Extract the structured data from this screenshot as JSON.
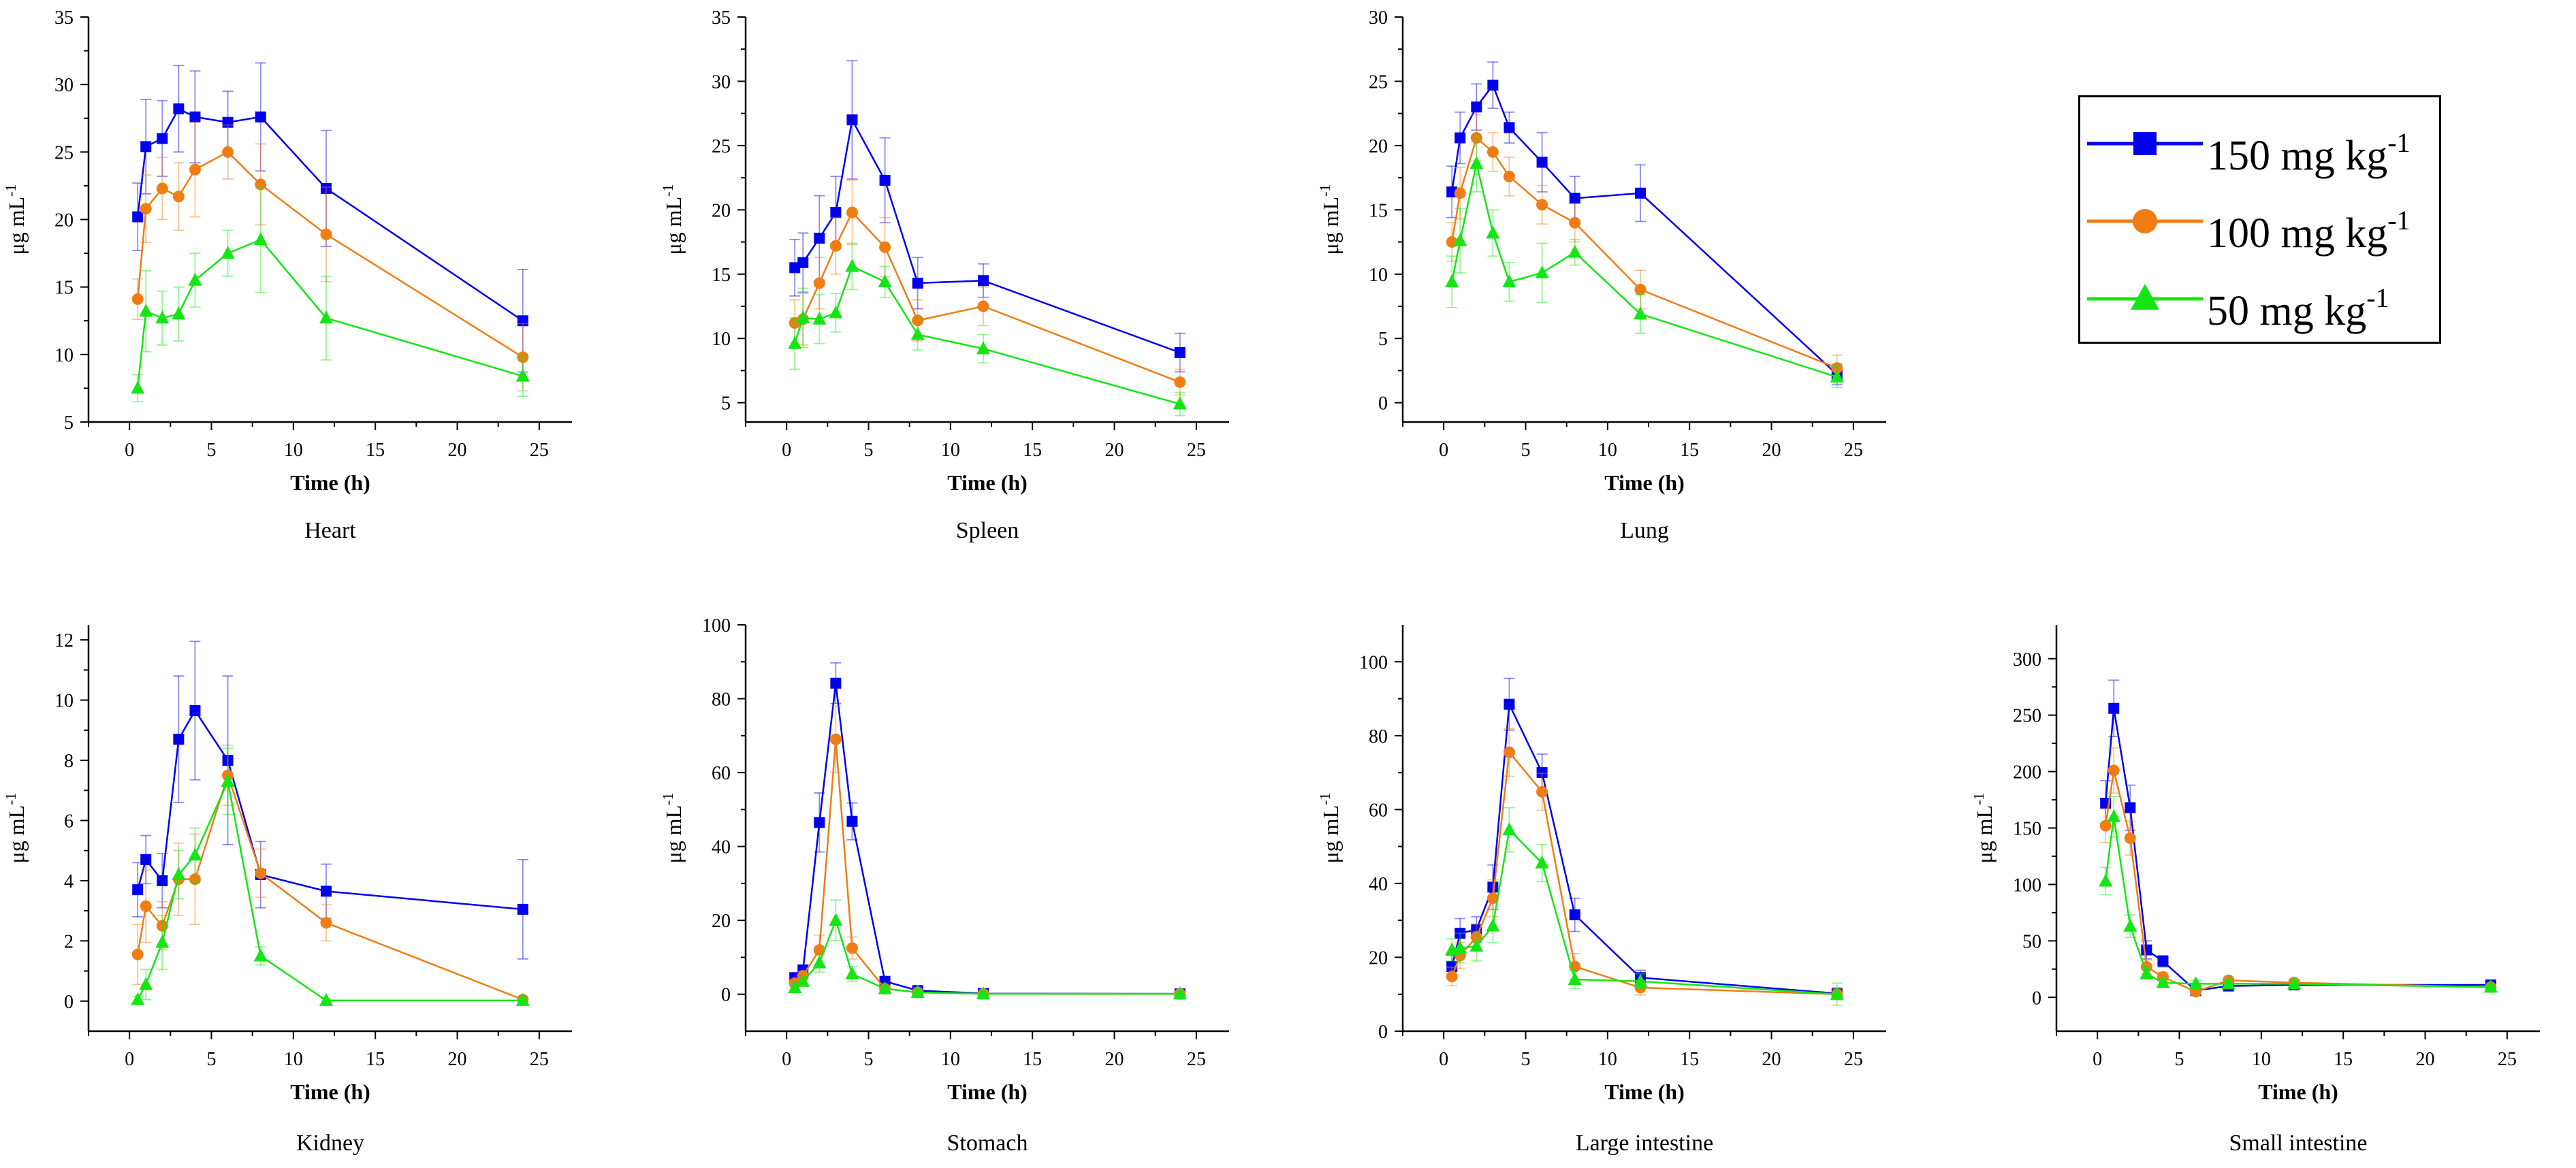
{
  "colors": {
    "s150": "#0000ee",
    "s100": "#f07d14",
    "s50": "#14e614",
    "axis": "#000000"
  },
  "legend": [
    {
      "series": 0,
      "text": "150 mg kg",
      "sup": "-1",
      "color": "#0000ee",
      "marker": "square"
    },
    {
      "series": 1,
      "text": "100 mg kg",
      "sup": "-1",
      "color": "#f07d14",
      "marker": "circle"
    },
    {
      "series": 2,
      "text": " 50 mg kg",
      "sup": "-1",
      "color": "#14e614",
      "marker": "triangle"
    }
  ],
  "chart_data": [
    {
      "type": "line",
      "title": "Heart",
      "xlabel": "Time (h)",
      "ylabel": "μg mL",
      "ylabel_sup": "-1",
      "xlim": [
        -2.5,
        27
      ],
      "ylim": [
        5,
        35
      ],
      "xticks": [
        0,
        5,
        10,
        15,
        20,
        25
      ],
      "yticks": [
        5,
        10,
        15,
        20,
        25,
        30,
        35
      ],
      "x": [
        0.5,
        1,
        2,
        3,
        4,
        6,
        8,
        12,
        24
      ],
      "series": [
        {
          "name": "150 mg kg-1",
          "marker": "square",
          "values": [
            20.2,
            25.4,
            26.0,
            28.2,
            27.6,
            27.2,
            27.6,
            22.3,
            12.5
          ],
          "errors": [
            2.5,
            3.5,
            2.8,
            3.2,
            3.4,
            2.3,
            4.0,
            4.3,
            3.8
          ]
        },
        {
          "name": "100 mg kg-1",
          "marker": "circle",
          "values": [
            14.1,
            20.8,
            22.3,
            21.7,
            23.7,
            25.0,
            22.6,
            18.9,
            9.8
          ],
          "errors": [
            1.5,
            2.5,
            2.3,
            2.5,
            3.5,
            2.0,
            3.0,
            3.5,
            2.5
          ]
        },
        {
          "name": "50 mg kg-1",
          "marker": "triangle",
          "values": [
            7.5,
            13.2,
            12.7,
            13.0,
            15.5,
            17.5,
            18.5,
            12.7,
            8.4
          ],
          "errors": [
            1.0,
            3.0,
            2.0,
            2.0,
            2.0,
            1.7,
            3.9,
            3.1,
            1.5
          ]
        }
      ]
    },
    {
      "type": "line",
      "title": "Spleen",
      "xlabel": "Time (h)",
      "ylabel": "μg mL",
      "ylabel_sup": "-1",
      "xlim": [
        -2.5,
        27
      ],
      "ylim": [
        3.5,
        35
      ],
      "xticks": [
        0,
        5,
        10,
        15,
        20,
        25
      ],
      "yticks": [
        5,
        10,
        15,
        20,
        25,
        30,
        35
      ],
      "x": [
        0.5,
        1,
        2,
        3,
        4,
        6,
        8,
        12,
        24
      ],
      "series": [
        {
          "name": "150 mg kg-1",
          "marker": "square",
          "values": [
            15.5,
            15.9,
            17.8,
            19.8,
            27.0,
            22.3,
            14.3,
            14.5,
            8.9
          ],
          "errors": [
            2.2,
            2.3,
            3.3,
            2.8,
            4.6,
            3.3,
            2.0,
            1.3,
            1.5
          ]
        },
        {
          "name": "100 mg kg-1",
          "marker": "circle",
          "values": [
            11.2,
            11.5,
            14.3,
            17.2,
            19.8,
            17.1,
            11.4,
            12.5,
            6.6
          ],
          "errors": [
            1.8,
            2.0,
            2.0,
            2.2,
            2.5,
            2.3,
            1.6,
            1.5,
            1.0
          ]
        },
        {
          "name": "50 mg kg-1",
          "marker": "triangle",
          "values": [
            9.6,
            11.6,
            11.5,
            12.0,
            15.6,
            14.4,
            10.3,
            9.2,
            4.9
          ],
          "errors": [
            2.0,
            2.3,
            1.9,
            1.5,
            1.8,
            1.2,
            1.2,
            1.1,
            0.9
          ]
        }
      ]
    },
    {
      "type": "line",
      "title": "Lung",
      "xlabel": "Time (h)",
      "ylabel": "μg mL",
      "ylabel_sup": "-1",
      "xlim": [
        -2.5,
        27
      ],
      "ylim": [
        -1.5,
        30
      ],
      "xticks": [
        0,
        5,
        10,
        15,
        20,
        25
      ],
      "yticks": [
        0,
        5,
        10,
        15,
        20,
        25,
        30
      ],
      "x": [
        0.5,
        1,
        2,
        3,
        4,
        6,
        8,
        12,
        24
      ],
      "series": [
        {
          "name": "150 mg kg-1",
          "marker": "square",
          "values": [
            16.4,
            20.6,
            23.0,
            24.7,
            21.4,
            18.7,
            15.9,
            16.3,
            2.2
          ],
          "errors": [
            2.0,
            2.0,
            1.8,
            1.8,
            1.2,
            2.3,
            1.7,
            2.2,
            0.8
          ]
        },
        {
          "name": "100 mg kg-1",
          "marker": "circle",
          "values": [
            12.5,
            16.3,
            20.6,
            19.5,
            17.6,
            15.4,
            14.0,
            8.8,
            2.7
          ],
          "errors": [
            1.5,
            2.0,
            1.8,
            1.5,
            1.5,
            1.5,
            1.5,
            1.5,
            1.0
          ]
        },
        {
          "name": "50 mg kg-1",
          "marker": "triangle",
          "values": [
            9.4,
            12.6,
            18.6,
            13.2,
            9.4,
            10.1,
            11.7,
            6.9,
            2.0
          ],
          "errors": [
            2.0,
            2.5,
            2.2,
            1.8,
            1.5,
            2.3,
            1.0,
            1.5,
            0.8
          ]
        }
      ]
    },
    {
      "type": "line",
      "title": "Kidney",
      "xlabel": "Time (h)",
      "ylabel": "μg mL",
      "ylabel_sup": "-1",
      "xlim": [
        -2.5,
        27
      ],
      "ylim": [
        -1,
        12.5
      ],
      "xticks": [
        0,
        5,
        10,
        15,
        20,
        25
      ],
      "yticks": [
        0,
        2,
        4,
        6,
        8,
        10,
        12
      ],
      "x": [
        0.5,
        1,
        2,
        3,
        4,
        6,
        8,
        12,
        24
      ],
      "series": [
        {
          "name": "150 mg kg-1",
          "marker": "square",
          "values": [
            3.7,
            4.7,
            4.0,
            8.7,
            9.65,
            8.0,
            4.2,
            3.65,
            3.05
          ],
          "errors": [
            0.9,
            0.8,
            0.9,
            2.1,
            2.3,
            2.8,
            1.1,
            0.9,
            1.65
          ]
        },
        {
          "name": "100 mg kg-1",
          "marker": "circle",
          "values": [
            1.55,
            3.15,
            2.5,
            4.05,
            4.05,
            7.5,
            4.25,
            2.6,
            0.05
          ],
          "errors": [
            1.0,
            1.2,
            0.8,
            1.2,
            1.5,
            1.0,
            0.8,
            0.6,
            0.1
          ]
        },
        {
          "name": "50 mg kg-1",
          "marker": "triangle",
          "values": [
            0.05,
            0.55,
            1.95,
            4.2,
            4.85,
            7.3,
            1.5,
            0.02,
            0.02
          ],
          "errors": [
            0.1,
            0.5,
            0.9,
            0.8,
            0.9,
            1.1,
            0.3,
            0.05,
            0.05
          ]
        }
      ]
    },
    {
      "type": "line",
      "title": "Stomach",
      "xlabel": "Time (h)",
      "ylabel": "μg mL",
      "ylabel_sup": "-1",
      "xlim": [
        -2.5,
        27
      ],
      "ylim": [
        -10,
        100
      ],
      "xticks": [
        0,
        5,
        10,
        15,
        20,
        25
      ],
      "yticks": [
        0,
        20,
        40,
        60,
        80,
        100
      ],
      "x": [
        0.5,
        1,
        2,
        3,
        4,
        6,
        8,
        12,
        24
      ],
      "series": [
        {
          "name": "150 mg kg-1",
          "marker": "square",
          "values": [
            4.5,
            6.5,
            46.5,
            84.2,
            46.8,
            3.5,
            1.0,
            0.2,
            0.1
          ],
          "errors": [
            1.0,
            1.5,
            8.0,
            5.5,
            5.0,
            1.0,
            0.5,
            0.2,
            0.1
          ]
        },
        {
          "name": "100 mg kg-1",
          "marker": "circle",
          "values": [
            3.0,
            5.0,
            12.0,
            69.0,
            12.5,
            1.5,
            0.5,
            0.1,
            0.1
          ],
          "errors": [
            1.0,
            1.2,
            4.0,
            9.0,
            3.0,
            0.8,
            0.3,
            0.1,
            0.1
          ]
        },
        {
          "name": "50 mg kg-1",
          "marker": "triangle",
          "values": [
            1.8,
            3.5,
            8.5,
            20.0,
            5.5,
            1.5,
            0.5,
            0.1,
            0.1
          ],
          "errors": [
            0.8,
            1.0,
            2.5,
            5.5,
            2.0,
            0.8,
            0.3,
            0.1,
            0.1
          ]
        }
      ]
    },
    {
      "type": "line",
      "title": "Large intestine",
      "xlabel": "Time (h)",
      "ylabel": "μg mL",
      "ylabel_sup": "-1",
      "xlim": [
        -2.5,
        27
      ],
      "ylim": [
        0,
        110
      ],
      "xticks": [
        0,
        5,
        10,
        15,
        20,
        25
      ],
      "yticks": [
        0,
        20,
        40,
        60,
        80,
        100
      ],
      "x": [
        0.5,
        1,
        2,
        3,
        4,
        6,
        8,
        12,
        24
      ],
      "series": [
        {
          "name": "150 mg kg-1",
          "marker": "square",
          "values": [
            17.5,
            26.5,
            27.5,
            39.0,
            88.5,
            70.0,
            31.5,
            14.5,
            10.2
          ],
          "errors": [
            3.0,
            4.0,
            3.5,
            6.0,
            7.0,
            5.0,
            4.5,
            2.0,
            1.5
          ]
        },
        {
          "name": "100 mg kg-1",
          "marker": "circle",
          "values": [
            14.8,
            20.5,
            25.5,
            36.0,
            75.5,
            64.8,
            17.5,
            11.8,
            10.0
          ],
          "errors": [
            2.5,
            3.5,
            3.5,
            5.0,
            6.5,
            5.0,
            3.5,
            2.0,
            1.5
          ]
        },
        {
          "name": "50 mg kg-1",
          "marker": "triangle",
          "values": [
            22.0,
            22.5,
            23.0,
            28.5,
            54.5,
            45.5,
            14.0,
            13.5,
            10.0
          ],
          "errors": [
            3.0,
            4.0,
            4.0,
            4.5,
            6.0,
            5.0,
            2.5,
            2.0,
            3.0
          ]
        }
      ]
    },
    {
      "type": "line",
      "title": "Small intestine",
      "xlabel": "Time (h)",
      "ylabel": "μg mL",
      "ylabel_sup": "-1",
      "xlim": [
        -2.5,
        27
      ],
      "ylim": [
        -30,
        330
      ],
      "xticks": [
        0,
        5,
        10,
        15,
        20,
        25
      ],
      "yticks": [
        0,
        50,
        100,
        150,
        200,
        250,
        300
      ],
      "x": [
        0.5,
        1,
        2,
        3,
        4,
        6,
        8,
        12,
        24
      ],
      "series": [
        {
          "name": "150 mg kg-1",
          "marker": "square",
          "values": [
            172,
            256,
            168,
            42,
            32,
            6,
            10,
            11,
            11
          ],
          "errors": [
            20,
            25,
            20,
            8,
            5,
            2,
            3,
            3,
            2
          ]
        },
        {
          "name": "100 mg kg-1",
          "marker": "circle",
          "values": [
            152,
            201,
            141,
            27,
            18,
            5,
            15,
            13,
            9
          ],
          "errors": [
            15,
            20,
            15,
            6,
            4,
            2,
            3,
            3,
            2
          ]
        },
        {
          "name": "50 mg kg-1",
          "marker": "triangle",
          "values": [
            103,
            160,
            63,
            21,
            13,
            12,
            12,
            12,
            9
          ],
          "errors": [
            12,
            18,
            10,
            5,
            3,
            3,
            3,
            3,
            2
          ]
        }
      ]
    }
  ]
}
